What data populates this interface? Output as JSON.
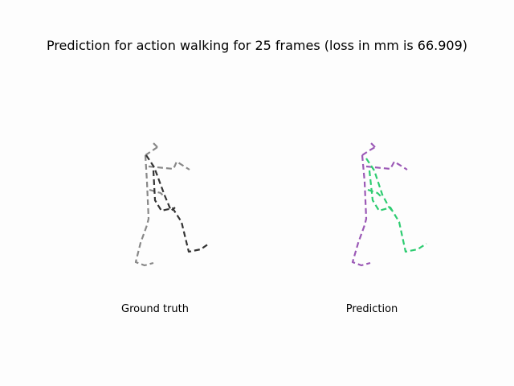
{
  "figure": {
    "title": "Prediction for action walking for 25 frames (loss in mm is 66.909)"
  },
  "panels": [
    {
      "label": "Ground truth",
      "colors": {
        "left": "#888888",
        "right": "#333333"
      }
    },
    {
      "label": "Prediction",
      "colors": {
        "left": "#9b59b6",
        "right": "#2ecc71"
      }
    }
  ]
}
